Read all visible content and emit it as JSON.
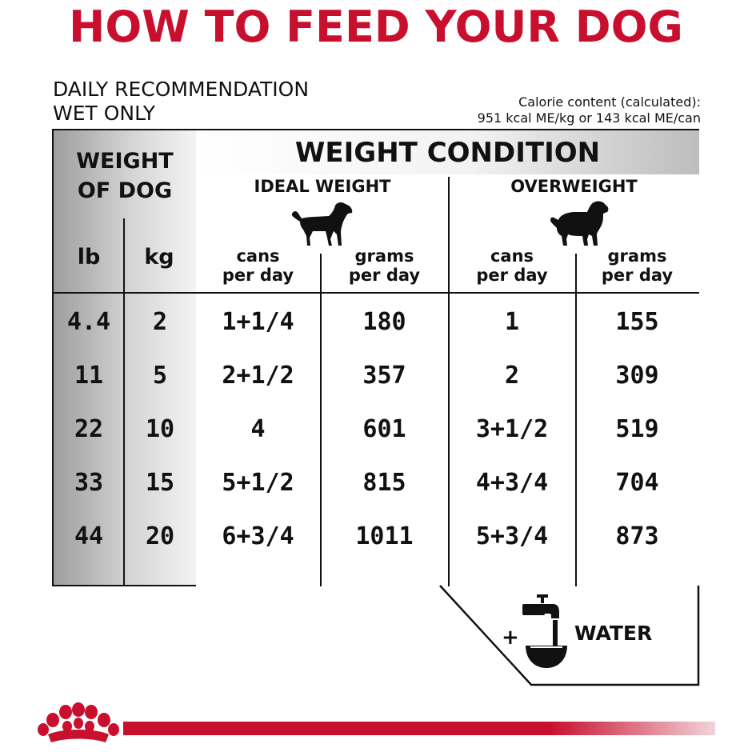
{
  "header": {
    "title": "HOW TO FEED YOUR DOG",
    "daily_line1": "DAILY RECOMMENDATION",
    "daily_line2": "WET ONLY",
    "calorie_line1": "Calorie content (calculated):",
    "calorie_line2": "951 kcal ME/kg or 143 kcal ME/can"
  },
  "table": {
    "weight_condition": "WEIGHT CONDITION",
    "weight_of_dog_line1": "WEIGHT",
    "weight_of_dog_line2": "OF DOG",
    "unit_lb": "lb",
    "unit_kg": "kg",
    "ideal_weight": "IDEAL WEIGHT",
    "overweight": "OVERWEIGHT",
    "sub_headers": [
      {
        "line1": "cans",
        "line2": "per day"
      },
      {
        "line1": "grams",
        "line2": "per day"
      },
      {
        "line1": "cans",
        "line2": "per day"
      },
      {
        "line1": "grams",
        "line2": "per day"
      }
    ],
    "rows": [
      {
        "lb": "4.4",
        "kg": "2",
        "ideal_cans": "1+1/4",
        "ideal_grams": "180",
        "over_cans": "1",
        "over_grams": "155"
      },
      {
        "lb": "11",
        "kg": "5",
        "ideal_cans": "2+1/2",
        "ideal_grams": "357",
        "over_cans": "2",
        "over_grams": "309"
      },
      {
        "lb": "22",
        "kg": "10",
        "ideal_cans": "4",
        "ideal_grams": "601",
        "over_cans": "3+1/2",
        "over_grams": "519"
      },
      {
        "lb": "33",
        "kg": "15",
        "ideal_cans": "5+1/2",
        "ideal_grams": "815",
        "over_cans": "4+3/4",
        "over_grams": "704"
      },
      {
        "lb": "44",
        "kg": "20",
        "ideal_cans": "6+3/4",
        "ideal_grams": "1011",
        "over_cans": "5+3/4",
        "over_grams": "873"
      }
    ]
  },
  "water": {
    "plus": "+",
    "label": "WATER"
  },
  "icons": {
    "ideal_dog": "dog-silhouette-icon",
    "overweight_dog": "overweight-dog-silhouette-icon",
    "water": "water-tap-bowl-icon",
    "logo": "royal-canin-crown-logo"
  },
  "colors": {
    "brand_red": "#c8102e"
  }
}
